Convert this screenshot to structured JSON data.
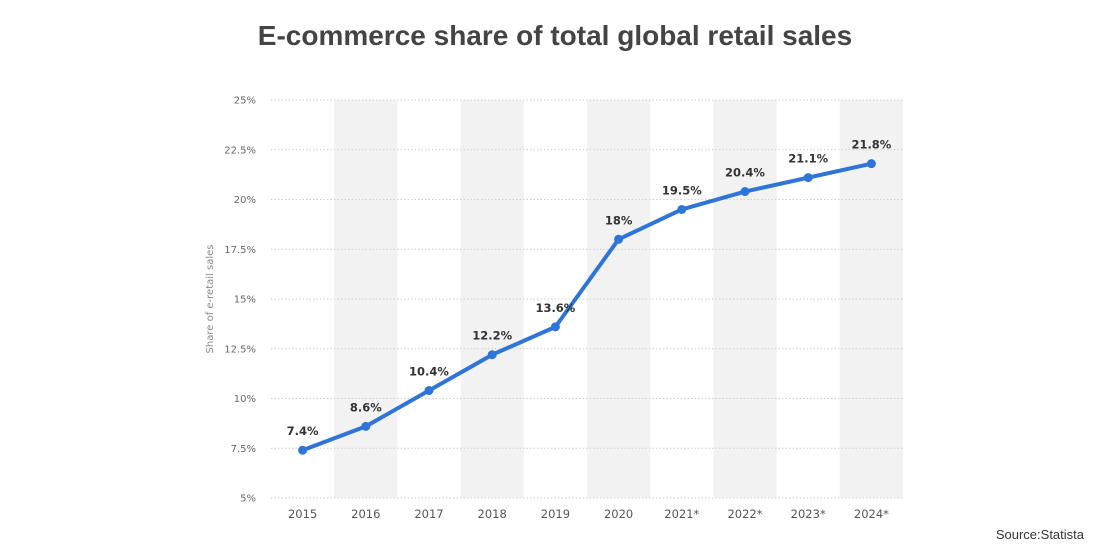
{
  "title": "E-commerce share of total global retail sales",
  "source": "Source:Statista",
  "colors": {
    "line": "#2f74d9",
    "band": "#f2f2f2",
    "grid": "#cfcfcf"
  },
  "chart_data": {
    "type": "line",
    "title": "E-commerce share of total global retail sales",
    "xlabel": "",
    "ylabel": "Share of e-retail sales",
    "categories": [
      "2015",
      "2016",
      "2017",
      "2018",
      "2019",
      "2020",
      "2021*",
      "2022*",
      "2023*",
      "2024*"
    ],
    "series": [
      {
        "values": [
          7.4,
          8.6,
          10.4,
          12.2,
          13.6,
          18,
          19.5,
          20.4,
          21.1,
          21.8
        ],
        "labels": [
          "7.4%",
          "8.6%",
          "10.4%",
          "12.2%",
          "13.6%",
          "18%",
          "19.5%",
          "20.4%",
          "21.1%",
          "21.8%"
        ]
      }
    ],
    "ylim": [
      5,
      25
    ],
    "yticks": [
      5,
      7.5,
      10,
      12.5,
      15,
      17.5,
      20,
      22.5,
      25
    ],
    "ytick_labels": [
      "5%",
      "7.5%",
      "10%",
      "12.5%",
      "15%",
      "17.5%",
      "20%",
      "22.5%",
      "25%"
    ],
    "grid": true,
    "legend": "none"
  }
}
